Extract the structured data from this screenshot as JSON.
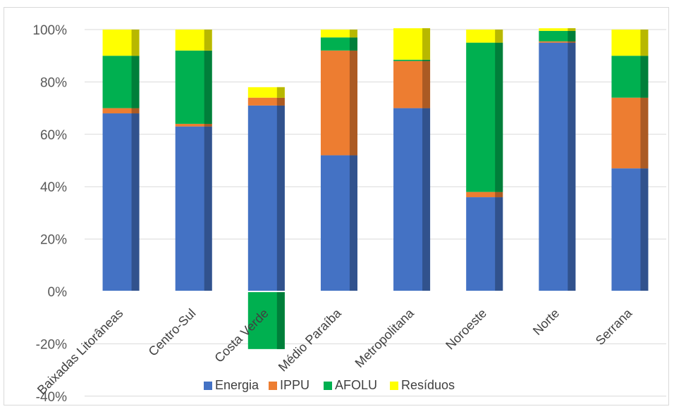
{
  "chart_data": {
    "type": "bar",
    "stacked": true,
    "title": "",
    "xlabel": "",
    "ylabel": "",
    "ylim": [
      -0.4,
      1.0
    ],
    "yticks": [
      -0.4,
      -0.2,
      0,
      0.2,
      0.4,
      0.6,
      0.8,
      1.0
    ],
    "ytick_labels": [
      "-40%",
      "-20%",
      "0%",
      "20%",
      "40%",
      "60%",
      "80%",
      "100%"
    ],
    "grid": true,
    "legend_position": "bottom",
    "categories": [
      "Baixadas Litorâneas",
      "Centro-Sul",
      "Costa Verde",
      "Médio Paraíba",
      "Metropolitana",
      "Noroeste",
      "Norte",
      "Serrana"
    ],
    "series": [
      {
        "name": "Energia",
        "color": "#4472C4",
        "values": [
          0.68,
          0.63,
          0.71,
          0.52,
          0.7,
          0.36,
          0.95,
          0.47
        ]
      },
      {
        "name": "IPPU",
        "color": "#ED7D31",
        "values": [
          0.02,
          0.01,
          0.03,
          0.4,
          0.18,
          0.02,
          0.005,
          0.27
        ]
      },
      {
        "name": "AFOLU",
        "color": "#00B050",
        "values": [
          0.2,
          0.28,
          -0.22,
          0.05,
          0.005,
          0.57,
          0.04,
          0.16
        ]
      },
      {
        "name": "Resíduos",
        "color": "#FFFF00",
        "values": [
          0.1,
          0.08,
          0.04,
          0.03,
          0.12,
          0.05,
          0.01,
          0.1
        ]
      }
    ]
  }
}
